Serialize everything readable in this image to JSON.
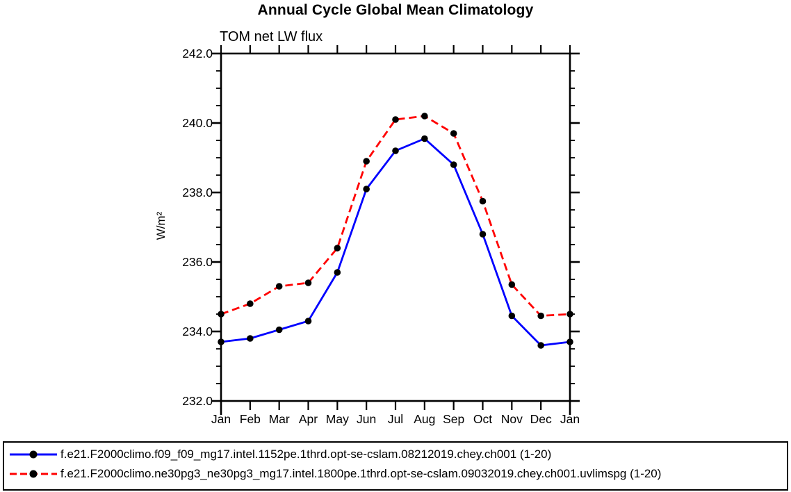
{
  "title": "Annual Cycle Global Mean Climatology",
  "subtitle": "TOM net LW flux",
  "chart_data": {
    "type": "line",
    "title": "Annual Cycle Global Mean Climatology",
    "subtitle": "TOM net LW flux",
    "ylabel": "W/m²",
    "xlabel": "",
    "categories": [
      "Jan",
      "Feb",
      "Mar",
      "Apr",
      "May",
      "Jun",
      "Jul",
      "Aug",
      "Sep",
      "Oct",
      "Nov",
      "Dec",
      "Jan"
    ],
    "series": [
      {
        "name": "f.e21.F2000climo.f09_f09_mg17.intel.1152pe.1thrd.opt-se-cslam.08212019.chey.ch001 (1-20)",
        "color": "#0000ff",
        "style": "solid",
        "values": [
          233.7,
          233.8,
          234.05,
          234.3,
          235.7,
          238.1,
          239.2,
          239.55,
          238.8,
          236.8,
          234.45,
          233.6,
          233.7
        ]
      },
      {
        "name": "f.e21.F2000climo.ne30pg3_ne30pg3_mg17.intel.1800pe.1thrd.opt-se-cslam.09032019.chey.ch001.uvlimspg (1-20)",
        "color": "#ff0000",
        "style": "dashed",
        "values": [
          234.5,
          234.8,
          235.3,
          235.4,
          236.4,
          238.9,
          240.1,
          240.2,
          239.7,
          237.75,
          235.35,
          234.45,
          234.5
        ]
      }
    ],
    "ylim": [
      232.0,
      242.0
    ],
    "ytick_interval": 2.0,
    "yminor_interval": 0.5,
    "yticks": [
      {
        "value": 232.0,
        "label": "232.0"
      },
      {
        "value": 234.0,
        "label": "234.0"
      },
      {
        "value": 236.0,
        "label": "236.0"
      },
      {
        "value": 238.0,
        "label": "238.0"
      },
      {
        "value": 240.0,
        "label": "240.0"
      },
      {
        "value": 242.0,
        "label": "242.0"
      }
    ],
    "marker": "filled-circle",
    "marker_color": "#000000",
    "axis_color": "#000000",
    "grid": false,
    "legend_position": "bottom"
  }
}
